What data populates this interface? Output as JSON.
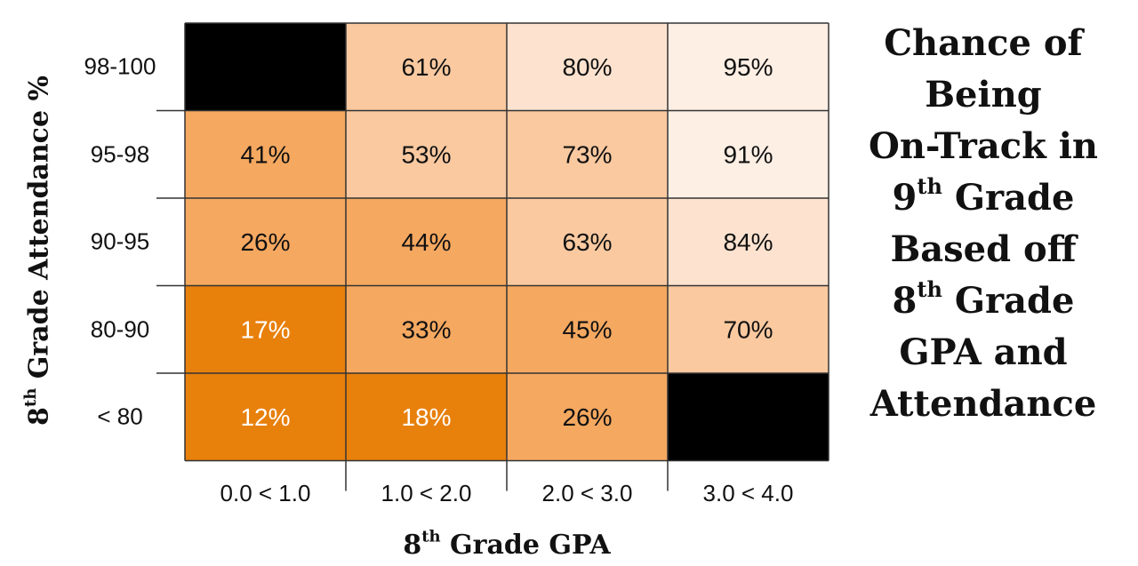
{
  "chart_data": {
    "type": "heatmap",
    "title": {
      "lines": [
        {
          "main": "Chance of"
        },
        {
          "main": "Being"
        },
        {
          "main": "On-Track in"
        },
        {
          "main": "9",
          "sup": "th",
          "rest": " Grade"
        },
        {
          "main": "Based off"
        },
        {
          "main": "8",
          "sup": "th",
          "rest": " Grade"
        },
        {
          "main": "GPA and"
        },
        {
          "main": "Attendance"
        }
      ]
    },
    "xlabel": {
      "main": "8",
      "sup": "th",
      "rest": " Grade GPA"
    },
    "ylabel": {
      "main": "8",
      "sup": "th",
      "rest": " Grade Attendance %"
    },
    "x_categories": [
      "0.0 < 1.0",
      "1.0 < 2.0",
      "2.0 < 3.0",
      "3.0 < 4.0"
    ],
    "y_categories": [
      "98-100",
      "95-98",
      "90-95",
      "80-90",
      "< 80"
    ],
    "values": [
      [
        null,
        61,
        80,
        95
      ],
      [
        41,
        53,
        73,
        91
      ],
      [
        26,
        44,
        63,
        84
      ],
      [
        17,
        33,
        45,
        70
      ],
      [
        12,
        18,
        26,
        null
      ]
    ],
    "value_suffix": "%",
    "colors": {
      "missing": "#000000",
      "bands": [
        {
          "min": 0,
          "max": 25,
          "fill": "#e8800c",
          "text": "#ffffff"
        },
        {
          "min": 25,
          "max": 50,
          "fill": "#f5a860",
          "text": "#111111"
        },
        {
          "min": 50,
          "max": 75,
          "fill": "#fac9a0",
          "text": "#111111"
        },
        {
          "min": 75,
          "max": 90,
          "fill": "#fde3cf",
          "text": "#111111"
        },
        {
          "min": 90,
          "max": 101,
          "fill": "#feefe4",
          "text": "#111111"
        }
      ],
      "gridline": "#333333"
    }
  }
}
